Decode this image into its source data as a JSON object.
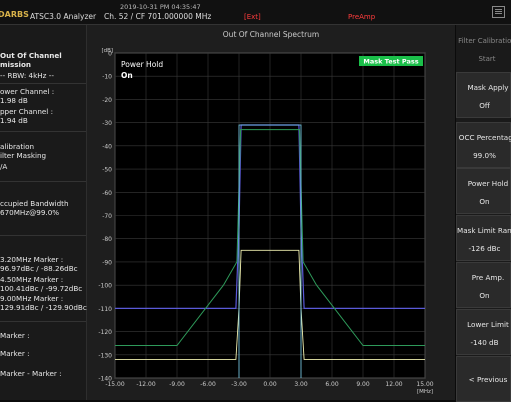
{
  "header": {
    "logo": "DARBS",
    "datetime": "2019-10-31 PM 04:35:47",
    "app_name": "ATSC3.0 Analyzer",
    "channel_info": "Ch. 52 / CF 701.000000 MHz",
    "ext": "[Ext]",
    "preamp": "PreAmp",
    "menu_icon": "menu-icon"
  },
  "left_panel": {
    "lines": [
      {
        "text": "Out Of Channel",
        "bold": true
      },
      {
        "text": "mission",
        "bold": true
      },
      {
        "text": "-- RBW: 4kHz --",
        "bold": false
      },
      {
        "text": "ower Channel :",
        "bold": false
      },
      {
        "text": "1.98 dB",
        "bold": false
      },
      {
        "text": "pper Channel :",
        "bold": false
      },
      {
        "text": "1.94 dB",
        "bold": false
      },
      {
        "text": "alibration",
        "bold": false
      },
      {
        "text": "ilter Masking",
        "bold": false
      },
      {
        "text": "/A",
        "bold": false
      },
      {
        "text": "ccupied Bandwidth",
        "bold": false
      },
      {
        "text": "670MHz@99.0%",
        "bold": false
      },
      {
        "text": "3.20MHz Marker :",
        "bold": false
      },
      {
        "text": "96.97dBc / -88.26dBc",
        "bold": false
      },
      {
        "text": "4.50MHz Marker :",
        "bold": false
      },
      {
        "text": "100.41dBc / -99.72dBc",
        "bold": false
      },
      {
        "text": "9.00MHz Marker :",
        "bold": false
      },
      {
        "text": "129.91dBc / -129.90dBc",
        "bold": false
      },
      {
        "text": "Marker :",
        "bold": false
      },
      {
        "text": "Marker :",
        "bold": false
      },
      {
        "text": "Marker - Marker :",
        "bold": false
      }
    ]
  },
  "plot": {
    "title": "Out Of Channel Spectrum",
    "yunit": "[dB]",
    "xunit": "[MHz]",
    "power_hold_label": "Power Hold",
    "power_hold_value": "On",
    "mask_badge": "Mask Test Pass",
    "mask_badge_color": "#1bbf4a",
    "trace_color": "#5a5ad8",
    "mask_color": "#2e9a5a",
    "hold_color": "#7ad2f0",
    "min_trace_color": "#f0f0b0"
  },
  "chart_data": {
    "type": "line",
    "title": "Out Of Channel Spectrum",
    "xlabel": "[MHz]",
    "ylabel": "[dB]",
    "xlim": [
      -15,
      15
    ],
    "ylim": [
      -140,
      0
    ],
    "x_ticks": [
      "-15.00",
      "-12.00",
      "-9.00",
      "-6.00",
      "-3.00",
      "0.00",
      "3.00",
      "6.00",
      "9.00",
      "12.00",
      "15.00"
    ],
    "y_ticks": [
      "0",
      "-10",
      "-20",
      "-30",
      "-40",
      "-50",
      "-60",
      "-70",
      "-80",
      "-90",
      "-100",
      "-110",
      "-120",
      "-130",
      "-140"
    ],
    "grid": true,
    "series": [
      {
        "x": [
          -15,
          -3.3,
          -3.0,
          -2.8,
          2.8,
          3.0,
          3.3,
          15
        ],
        "y": [
          -110,
          -110,
          -75,
          -31,
          -31,
          -75,
          -110,
          -110
        ]
      },
      {
        "x": [
          -15,
          -3.3,
          -3.0,
          -2.8,
          2.8,
          3.0,
          3.3,
          15
        ],
        "y": [
          -132,
          -132,
          -110,
          -85,
          -85,
          -110,
          -132,
          -132
        ]
      },
      {
        "x": [
          -15,
          -9.0,
          -4.5,
          -3.2,
          -2.85,
          2.85,
          3.2,
          4.5,
          9.0,
          15
        ],
        "y": [
          -126,
          -126,
          -100,
          -90,
          -33,
          -33,
          -90,
          -100,
          -126,
          -126
        ]
      }
    ]
  },
  "right_panel": {
    "header_label": "Filter Calibration",
    "start_label": "Start",
    "softkeys": [
      {
        "title": "Mask Apply",
        "value": "Off"
      },
      {
        "title": "OCC Percentage",
        "value": "99.0%"
      },
      {
        "title": "Power Hold",
        "value": "On"
      },
      {
        "title": "Mask Limit Range",
        "value": "-126 dBc"
      },
      {
        "title": "Pre Amp.",
        "value": "On"
      },
      {
        "title": "Lower Limit",
        "value": "-140 dB"
      },
      {
        "title": "< Previous",
        "value": ""
      }
    ]
  }
}
